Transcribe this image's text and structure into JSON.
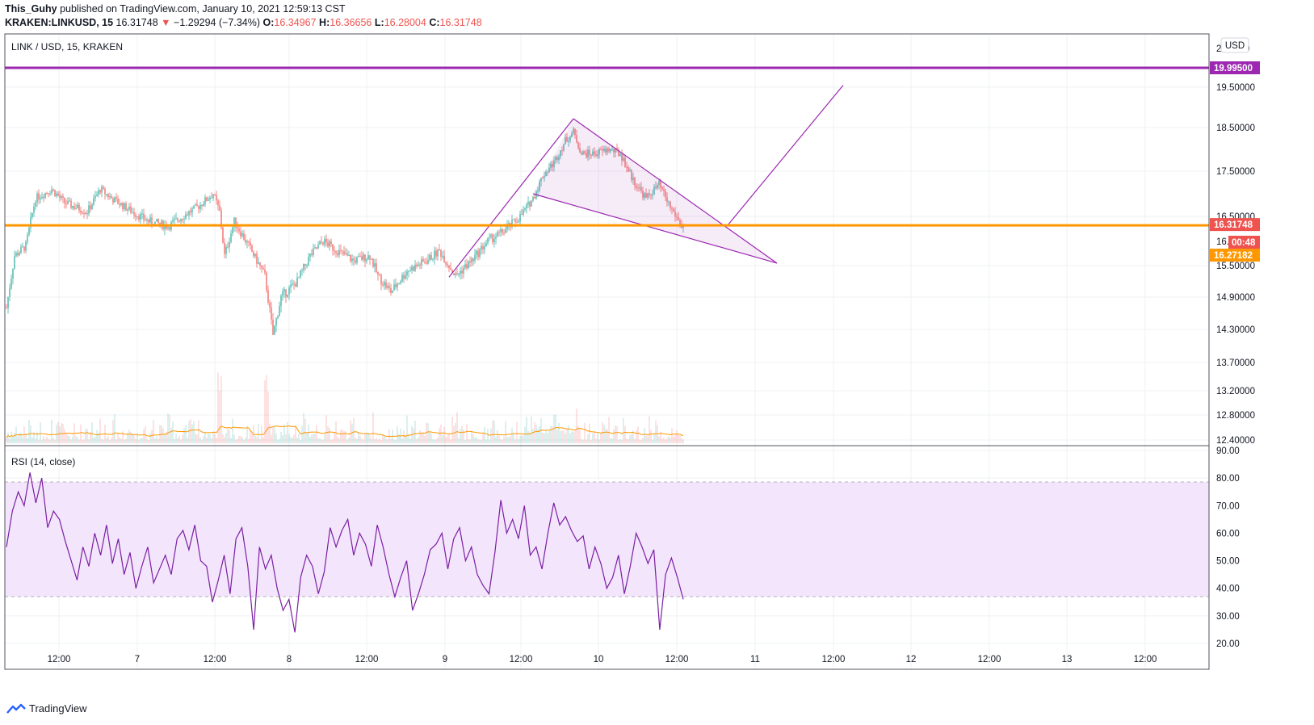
{
  "header": {
    "publisher": "This_Guhy",
    "published_text": "published on TradingView.com, January 10, 2021 12:59:13 CST",
    "symbol": "KRAKEN:LINKUSD, 15",
    "last": "16.31748",
    "change_arrow": "▼",
    "change": "−1.29294 (−7.34%)",
    "o_label": "O:",
    "o": "16.34967",
    "h_label": "H:",
    "h": "16.36656",
    "l_label": "L:",
    "l": "16.28004",
    "c_label": "C:",
    "c": "16.31748"
  },
  "pane_title": "LINK / USD, 15, KRAKEN",
  "currency_button": "USD",
  "rsi_title": "RSI (14, close)",
  "brand": "TradingView",
  "price_tags": {
    "resistance": "19.99500",
    "last": "16.31748",
    "countdown": "00:48",
    "ma": "16.27182",
    "partial_top": "20.0000",
    "partial_mid": "16.0"
  },
  "colors": {
    "resistance": "#9c27b0",
    "support": "#ff9800",
    "up_candle": "#26a69a",
    "down_candle": "#ef5350",
    "pattern": "#9c27b0",
    "rsi_line": "#7b1fa2",
    "rsi_band": "#f3e5fc",
    "volume_ma": "#ff9800"
  },
  "chart_data": [
    {
      "type": "candlestick",
      "title": "LINK / USD, 15, KRAKEN",
      "price_axis_labels": [
        "19.50000",
        "18.50000",
        "17.50000",
        "16.50000",
        "15.50000",
        "14.90000",
        "14.30000",
        "13.70000",
        "13.20000",
        "12.80000",
        "12.40000"
      ],
      "time_axis_labels": [
        "12:00",
        "7",
        "12:00",
        "8",
        "12:00",
        "9",
        "12:00",
        "10",
        "12:00",
        "11",
        "12:00",
        "12",
        "12:00",
        "13",
        "12:00"
      ],
      "resistance_level": 19.995,
      "support_level": 16.31748,
      "price_path": [
        [
          0,
          14.7
        ],
        [
          10,
          15.7
        ],
        [
          24,
          15.9
        ],
        [
          36,
          16.9
        ],
        [
          56,
          17.1
        ],
        [
          72,
          16.8
        ],
        [
          100,
          16.6
        ],
        [
          116,
          17.1
        ],
        [
          130,
          16.9
        ],
        [
          156,
          16.6
        ],
        [
          176,
          16.4
        ],
        [
          200,
          16.3
        ],
        [
          236,
          16.7
        ],
        [
          256,
          17.0
        ],
        [
          264,
          16.6
        ],
        [
          270,
          15.7
        ],
        [
          282,
          16.4
        ],
        [
          300,
          15.9
        ],
        [
          320,
          15.3
        ],
        [
          330,
          14.2
        ],
        [
          340,
          14.9
        ],
        [
          360,
          15.2
        ],
        [
          376,
          15.7
        ],
        [
          392,
          16.0
        ],
        [
          410,
          15.8
        ],
        [
          430,
          15.6
        ],
        [
          450,
          15.7
        ],
        [
          460,
          15.3
        ],
        [
          476,
          15.0
        ],
        [
          496,
          15.4
        ],
        [
          520,
          15.6
        ],
        [
          536,
          15.8
        ],
        [
          556,
          15.3
        ],
        [
          576,
          15.6
        ],
        [
          596,
          16.0
        ],
        [
          616,
          16.2
        ],
        [
          636,
          16.5
        ],
        [
          652,
          16.9
        ],
        [
          664,
          17.4
        ],
        [
          678,
          17.7
        ],
        [
          692,
          18.2
        ],
        [
          702,
          18.4
        ],
        [
          712,
          17.9
        ],
        [
          728,
          17.9
        ],
        [
          746,
          18.0
        ],
        [
          760,
          17.9
        ],
        [
          776,
          17.3
        ],
        [
          792,
          16.9
        ],
        [
          808,
          17.2
        ],
        [
          822,
          16.7
        ],
        [
          836,
          16.3
        ],
        [
          846,
          16.32
        ]
      ],
      "pattern_lines": [
        {
          "name": "rising-wedge-leg",
          "points": [
            [
              556,
              15.28
            ],
            [
              710,
              18.72
            ]
          ]
        },
        {
          "name": "pennant-upper",
          "points": [
            [
              710,
              18.72
            ],
            [
              962,
              15.55
            ]
          ]
        },
        {
          "name": "pennant-lower",
          "points": [
            [
              660,
              17.0
            ],
            [
              962,
              15.55
            ]
          ]
        },
        {
          "name": "breakout-projection",
          "points": [
            [
              900,
              16.3
            ],
            [
              1044,
              19.55
            ]
          ]
        }
      ]
    },
    {
      "type": "line",
      "title": "RSI (14, close)",
      "ylim": [
        20,
        90
      ],
      "y_ticks": [
        "90.00",
        "80.00",
        "70.00",
        "60.00",
        "50.00",
        "40.00",
        "30.00",
        "20.00"
      ],
      "band": [
        30,
        70
      ],
      "values": [
        55,
        68,
        75,
        70,
        82,
        71,
        80,
        62,
        68,
        65,
        57,
        50,
        43,
        55,
        48,
        60,
        52,
        63,
        49,
        58,
        45,
        53,
        40,
        48,
        55,
        42,
        47,
        52,
        45,
        58,
        61,
        54,
        63,
        50,
        48,
        35,
        43,
        52,
        38,
        58,
        62,
        48,
        25,
        55,
        47,
        52,
        40,
        32,
        36,
        24,
        44,
        52,
        48,
        38,
        46,
        62,
        55,
        61,
        65,
        52,
        60,
        56,
        48,
        63,
        55,
        45,
        37,
        44,
        50,
        32,
        38,
        45,
        54,
        56,
        60,
        47,
        58,
        62,
        50,
        55,
        45,
        41,
        38,
        53,
        72,
        60,
        65,
        58,
        70,
        52,
        55,
        47,
        60,
        71,
        63,
        66,
        61,
        57,
        59,
        47,
        55,
        49,
        40,
        44,
        52,
        38,
        48,
        60,
        55,
        49,
        54,
        25,
        45,
        51,
        44,
        36
      ]
    }
  ]
}
